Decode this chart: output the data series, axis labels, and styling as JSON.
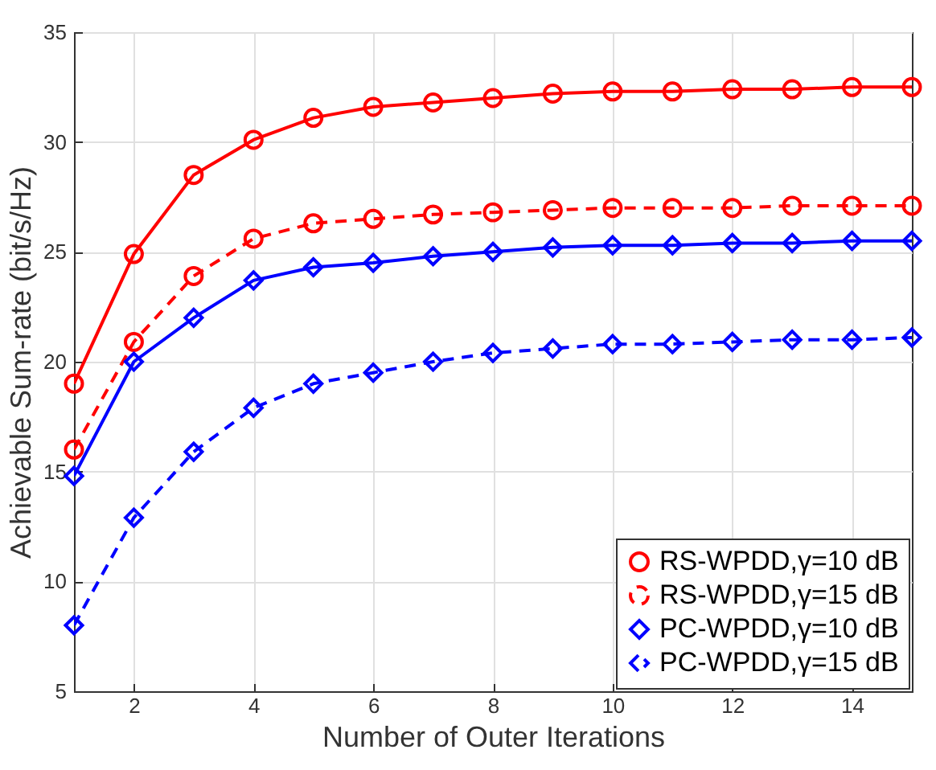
{
  "chart_data": {
    "type": "line",
    "xlabel": "Number of Outer Iterations",
    "ylabel": "Achievable Sum-rate (bit/s/Hz)",
    "x": [
      1,
      2,
      3,
      4,
      5,
      6,
      7,
      8,
      9,
      10,
      11,
      12,
      13,
      14,
      15
    ],
    "series": [
      {
        "name": "RS-WPDD,γ=10 dB",
        "color": "#ff0000",
        "marker": "circle",
        "line_style": "solid",
        "values": [
          19.0,
          24.9,
          28.5,
          30.1,
          31.1,
          31.6,
          31.8,
          32.0,
          32.2,
          32.3,
          32.3,
          32.4,
          32.4,
          32.5,
          32.5
        ]
      },
      {
        "name": "RS-WPDD,γ=15 dB",
        "color": "#ff0000",
        "marker": "circle",
        "line_style": "dashed",
        "values": [
          16.0,
          20.9,
          23.9,
          25.6,
          26.3,
          26.5,
          26.7,
          26.8,
          26.9,
          27.0,
          27.0,
          27.0,
          27.1,
          27.1,
          27.1
        ]
      },
      {
        "name": "PC-WPDD,γ=10 dB",
        "color": "#0000ff",
        "marker": "diamond",
        "line_style": "solid",
        "values": [
          14.8,
          20.0,
          22.0,
          23.7,
          24.3,
          24.5,
          24.8,
          25.0,
          25.2,
          25.3,
          25.3,
          25.4,
          25.4,
          25.5,
          25.5
        ]
      },
      {
        "name": "PC-WPDD,γ=15 dB",
        "color": "#0000ff",
        "marker": "diamond",
        "line_style": "dashed",
        "values": [
          8.0,
          12.9,
          15.9,
          17.9,
          19.0,
          19.5,
          20.0,
          20.4,
          20.6,
          20.8,
          20.8,
          20.9,
          21.0,
          21.0,
          21.1
        ]
      }
    ],
    "xlim": [
      1,
      15
    ],
    "xticks": [
      2,
      4,
      6,
      8,
      10,
      12,
      14
    ],
    "ylim": [
      5,
      35
    ],
    "yticks": [
      5,
      10,
      15,
      20,
      25,
      30,
      35
    ],
    "grid": true,
    "legend": "bottom right"
  }
}
